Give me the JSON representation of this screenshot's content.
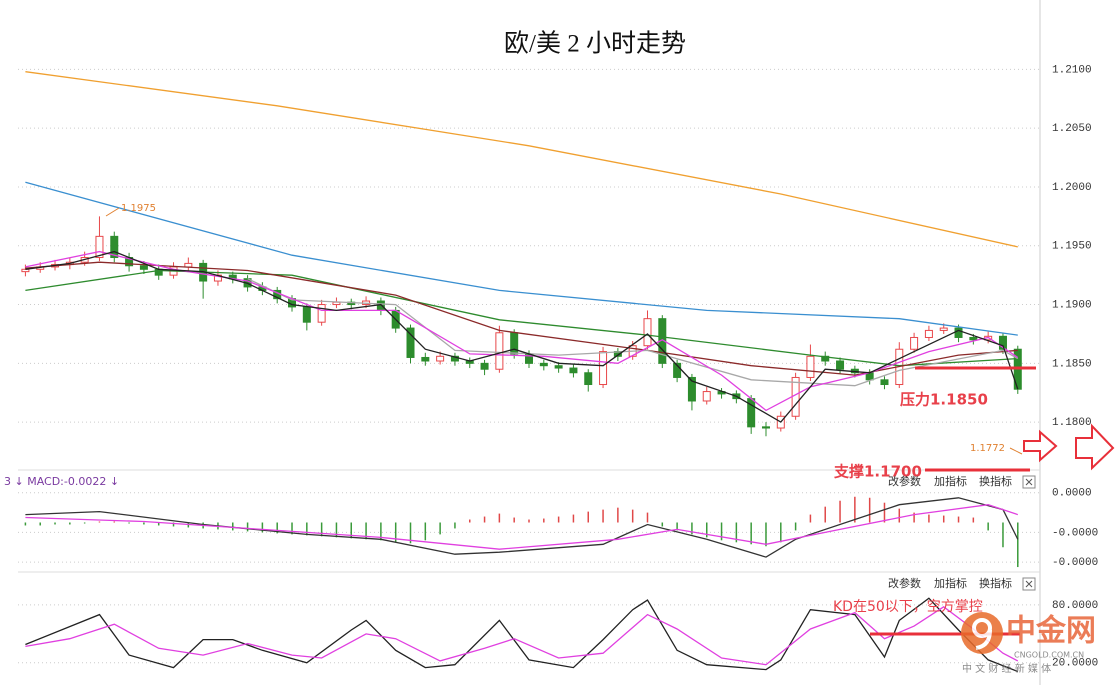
{
  "chart_data": [
    {
      "type": "candlestick",
      "title": "欧/美 2 小时走势",
      "up_color": "#e8474a",
      "down_color": "#2d8c2d",
      "xlim": [
        -0.5,
        68.5
      ],
      "ylim": [
        1.1761,
        1.2142
      ],
      "grid": true,
      "yticks": [
        {
          "value": 1.21,
          "label": "1.2100"
        },
        {
          "value": 1.205,
          "label": "1.2050"
        },
        {
          "value": 1.2,
          "label": "1.2000"
        },
        {
          "value": 1.195,
          "label": "1.1950"
        },
        {
          "value": 1.19,
          "label": "1.1900"
        },
        {
          "value": 1.185,
          "label": "1.1850"
        },
        {
          "value": 1.18,
          "label": "1.1800"
        }
      ],
      "annotations": [
        "1.1975",
        "1.1772",
        "压力1.1850",
        "支撑1.1700"
      ],
      "ohlc": [
        [
          1.1928,
          1.1934,
          1.1924,
          1.193
        ],
        [
          1.193,
          1.1936,
          1.1927,
          1.1932
        ],
        [
          1.1932,
          1.1938,
          1.1929,
          1.1934
        ],
        [
          1.1934,
          1.194,
          1.193,
          1.1936
        ],
        [
          1.1936,
          1.1945,
          1.1933,
          1.194
        ],
        [
          1.194,
          1.1975,
          1.1937,
          1.1958
        ],
        [
          1.1958,
          1.1962,
          1.1936,
          1.194
        ],
        [
          1.194,
          1.1944,
          1.1928,
          1.1933
        ],
        [
          1.1933,
          1.1937,
          1.1926,
          1.193
        ],
        [
          1.193,
          1.1934,
          1.1921,
          1.1925
        ],
        [
          1.1925,
          1.1936,
          1.1922,
          1.1932
        ],
        [
          1.1932,
          1.194,
          1.1929,
          1.1935
        ],
        [
          1.1935,
          1.1938,
          1.1905,
          1.192
        ],
        [
          1.192,
          1.1929,
          1.1916,
          1.1925
        ],
        [
          1.1925,
          1.1928,
          1.1918,
          1.1922
        ],
        [
          1.1922,
          1.1925,
          1.1911,
          1.1915
        ],
        [
          1.1915,
          1.1919,
          1.1908,
          1.1912
        ],
        [
          1.1912,
          1.1915,
          1.1901,
          1.1905
        ],
        [
          1.1905,
          1.1908,
          1.1894,
          1.1898
        ],
        [
          1.1898,
          1.1901,
          1.1878,
          1.1885
        ],
        [
          1.1885,
          1.1904,
          1.1882,
          1.19
        ],
        [
          1.19,
          1.1906,
          1.1897,
          1.1902
        ],
        [
          1.1902,
          1.1905,
          1.1896,
          1.19
        ],
        [
          1.19,
          1.1907,
          1.1897,
          1.1903
        ],
        [
          1.1903,
          1.1906,
          1.1891,
          1.1895
        ],
        [
          1.1895,
          1.1898,
          1.1876,
          1.188
        ],
        [
          1.188,
          1.1883,
          1.185,
          1.1855
        ],
        [
          1.1855,
          1.1859,
          1.1848,
          1.1852
        ],
        [
          1.1852,
          1.186,
          1.1849,
          1.1856
        ],
        [
          1.1856,
          1.1859,
          1.1848,
          1.1852
        ],
        [
          1.1852,
          1.1855,
          1.1846,
          1.185
        ],
        [
          1.185,
          1.1853,
          1.184,
          1.1845
        ],
        [
          1.1845,
          1.1882,
          1.1842,
          1.1876
        ],
        [
          1.1876,
          1.1879,
          1.1854,
          1.1858
        ],
        [
          1.1858,
          1.1861,
          1.1846,
          1.185
        ],
        [
          1.185,
          1.1853,
          1.1844,
          1.1848
        ],
        [
          1.1848,
          1.1851,
          1.1842,
          1.1846
        ],
        [
          1.1846,
          1.1849,
          1.1838,
          1.1842
        ],
        [
          1.1842,
          1.1845,
          1.1826,
          1.1832
        ],
        [
          1.1832,
          1.1864,
          1.1829,
          1.186
        ],
        [
          1.186,
          1.1863,
          1.1852,
          1.1856
        ],
        [
          1.1856,
          1.1869,
          1.1853,
          1.1865
        ],
        [
          1.1865,
          1.1895,
          1.1862,
          1.1888
        ],
        [
          1.1888,
          1.1891,
          1.1846,
          1.185
        ],
        [
          1.185,
          1.1853,
          1.1834,
          1.1838
        ],
        [
          1.1838,
          1.1841,
          1.181,
          1.1818
        ],
        [
          1.1818,
          1.183,
          1.1815,
          1.1826
        ],
        [
          1.1826,
          1.1829,
          1.182,
          1.1824
        ],
        [
          1.1824,
          1.1827,
          1.1816,
          1.182
        ],
        [
          1.182,
          1.1823,
          1.179,
          1.1796
        ],
        [
          1.1796,
          1.18,
          1.1788,
          1.1795
        ],
        [
          1.1795,
          1.1809,
          1.1792,
          1.1805
        ],
        [
          1.1805,
          1.1842,
          1.1802,
          1.1838
        ],
        [
          1.1838,
          1.1866,
          1.1835,
          1.1856
        ],
        [
          1.1856,
          1.186,
          1.1848,
          1.1852
        ],
        [
          1.1852,
          1.1855,
          1.1841,
          1.1845
        ],
        [
          1.1845,
          1.1848,
          1.1838,
          1.1842
        ],
        [
          1.1842,
          1.1845,
          1.1832,
          1.1836
        ],
        [
          1.1836,
          1.1839,
          1.1828,
          1.1832
        ],
        [
          1.1832,
          1.1868,
          1.1829,
          1.1862
        ],
        [
          1.1862,
          1.1876,
          1.1859,
          1.1872
        ],
        [
          1.1872,
          1.1882,
          1.1869,
          1.1878
        ],
        [
          1.1878,
          1.1884,
          1.1875,
          1.188
        ],
        [
          1.188,
          1.1883,
          1.1868,
          1.1872
        ],
        [
          1.1872,
          1.1875,
          1.1866,
          1.187
        ],
        [
          1.187,
          1.1877,
          1.1867,
          1.1873
        ],
        [
          1.1873,
          1.1876,
          1.1858,
          1.1862
        ],
        [
          1.1862,
          1.1865,
          1.1824,
          1.1828
        ]
      ],
      "series": [
        {
          "color": "#f0a030",
          "x": [
            0,
            17,
            34,
            51,
            67
          ],
          "values": [
            1.2098,
            1.2069,
            1.2035,
            1.1994,
            1.1949
          ]
        },
        {
          "color": "#3a8fd0",
          "x": [
            0,
            18,
            32,
            46,
            59,
            67
          ],
          "values": [
            1.2004,
            1.1942,
            1.1912,
            1.1895,
            1.1888,
            1.1874
          ]
        },
        {
          "color": "#2e8b2e",
          "x": [
            0,
            9,
            18,
            32,
            42,
            53,
            59,
            67
          ],
          "values": [
            1.1912,
            1.1929,
            1.1925,
            1.1887,
            1.1874,
            1.1857,
            1.1848,
            1.1854
          ]
        },
        {
          "color": "#8b2a2a",
          "x": [
            0,
            5,
            15,
            25,
            32,
            42,
            49,
            56,
            63,
            67
          ],
          "values": [
            1.1931,
            1.1936,
            1.1929,
            1.1908,
            1.1878,
            1.1861,
            1.1848,
            1.184,
            1.1857,
            1.1861
          ]
        },
        {
          "color": "#a8a8a8",
          "x": [
            15,
            18,
            25,
            29,
            36,
            42,
            49,
            56,
            59,
            66,
            67
          ],
          "values": [
            1.1922,
            1.1904,
            1.19,
            1.1861,
            1.1857,
            1.1861,
            1.1836,
            1.1831,
            1.1844,
            1.1861,
            1.1854
          ]
        },
        {
          "color": "#e040e0",
          "x": [
            0,
            5,
            10,
            15,
            20,
            25,
            30,
            35,
            40,
            43,
            47,
            50,
            53,
            57,
            61,
            65,
            67
          ],
          "values": [
            1.1932,
            1.1945,
            1.193,
            1.192,
            1.1895,
            1.1895,
            1.1858,
            1.1856,
            1.185,
            1.187,
            1.184,
            1.181,
            1.183,
            1.1842,
            1.186,
            1.1872,
            1.1855
          ]
        },
        {
          "color": "#222222",
          "x": [
            0,
            3,
            6,
            9,
            12,
            15,
            18,
            21,
            24,
            27,
            30,
            33,
            36,
            39,
            42,
            45,
            48,
            51,
            54,
            57,
            60,
            63,
            66,
            67
          ],
          "values": [
            1.193,
            1.1935,
            1.1945,
            1.193,
            1.1928,
            1.1918,
            1.19,
            1.1895,
            1.19,
            1.1862,
            1.1852,
            1.1862,
            1.185,
            1.1848,
            1.1875,
            1.1835,
            1.1822,
            1.18,
            1.1845,
            1.1842,
            1.186,
            1.1878,
            1.1865,
            1.1828
          ]
        }
      ]
    },
    {
      "type": "macd",
      "header": "3 ↓ MACD:-0.0022 ↓",
      "buttons": [
        "改参数",
        "加指标",
        "换指标"
      ],
      "xlim": [
        -0.5,
        68.5
      ],
      "ylim": [
        -5e-05,
        5e-05
      ],
      "grid": true,
      "yticks": [
        {
          "value": 3e-05,
          "label": "0.0000"
        },
        {
          "value": -1e-05,
          "label": "-0.0000"
        },
        {
          "value": -4e-05,
          "label": "-0.0000"
        }
      ],
      "bars": {
        "up_color": "#e04848",
        "down_color": "#3a9a3a",
        "values": [
          -3e-06,
          -3e-06,
          -2e-06,
          -2e-06,
          -1e-06,
          1e-06,
          1e-06,
          -1e-06,
          -2e-06,
          -3e-06,
          -4e-06,
          -5e-06,
          -6e-06,
          -7e-06,
          -8e-06,
          -9e-06,
          -1e-05,
          -1.1e-05,
          -1.2e-05,
          -1.3e-05,
          -1.4e-05,
          -1.5e-05,
          -1.6e-05,
          -1.7e-05,
          -1.8e-05,
          -2e-05,
          -2.1e-05,
          -1.8e-05,
          -1.2e-05,
          -6e-06,
          3e-06,
          6e-06,
          9e-06,
          5e-06,
          3e-06,
          4e-06,
          6e-06,
          8e-06,
          1.1e-05,
          1.3e-05,
          1.5e-05,
          1.3e-05,
          1e-05,
          -4e-06,
          -8e-06,
          -1.2e-05,
          -1.5e-05,
          -1.8e-05,
          -2e-05,
          -2.2e-05,
          -2.4e-05,
          -2e-05,
          -8e-06,
          8e-06,
          1.6e-05,
          2.2e-05,
          2.6e-05,
          2.5e-05,
          2e-05,
          1.4e-05,
          1e-05,
          8e-06,
          7e-06,
          6e-06,
          5e-06,
          -8e-06,
          -2.5e-05,
          -4.5e-05
        ]
      },
      "series": [
        {
          "color": "#333333",
          "x": [
            0,
            5,
            12,
            19,
            24,
            29,
            32,
            39,
            42,
            46,
            50,
            52,
            56,
            59,
            63,
            66,
            67
          ],
          "values": [
            8e-06,
            1.1e-05,
            -2e-06,
            -1.2e-05,
            -1.7e-05,
            -3.2e-05,
            -3e-05,
            -2.2e-05,
            -2e-06,
            -1.7e-05,
            -3.5e-05,
            -1.7e-05,
            3e-06,
            1.8e-05,
            2.5e-05,
            1.3e-05,
            -1.7e-05
          ]
        },
        {
          "color": "#e040e0",
          "x": [
            0,
            8,
            16,
            24,
            32,
            40,
            44,
            50,
            55,
            60,
            65,
            67
          ],
          "values": [
            5e-06,
            1e-06,
            -7e-06,
            -1.5e-05,
            -2.7e-05,
            -1.7e-05,
            -7e-06,
            -2.2e-05,
            -7e-06,
            8e-06,
            1.8e-05,
            8e-06
          ]
        }
      ]
    },
    {
      "type": "kd",
      "buttons": [
        "改参数",
        "加指标",
        "换指标"
      ],
      "annotation": "KD在50以下，空方掌控",
      "xlim": [
        -0.5,
        68.5
      ],
      "ylim": [
        -3,
        111
      ],
      "grid": true,
      "yticks": [
        {
          "value": 80,
          "label": "80.0000"
        },
        {
          "value": 20,
          "label": "20.0000"
        }
      ],
      "series": [
        {
          "color": "#222222",
          "x": [
            0,
            5,
            7,
            10,
            12,
            14,
            16,
            19,
            22,
            23,
            25,
            27,
            29,
            32,
            34,
            37,
            39,
            41,
            42,
            44,
            46,
            50,
            51,
            53,
            56,
            58,
            59,
            61,
            63,
            65,
            67
          ],
          "values": [
            39,
            70,
            28,
            15,
            44,
            44,
            33,
            20,
            54,
            64,
            33,
            15,
            18,
            64,
            23,
            15,
            44,
            75,
            85,
            33,
            18,
            13,
            23,
            75,
            70,
            26,
            64,
            87,
            54,
            23,
            11
          ]
        },
        {
          "color": "#e040e0",
          "x": [
            0,
            3,
            6,
            9,
            12,
            15,
            18,
            20,
            23,
            25,
            28,
            31,
            33,
            36,
            39,
            42,
            44,
            47,
            50,
            53,
            56,
            58,
            60,
            62,
            64,
            66,
            67
          ],
          "values": [
            37,
            45,
            60,
            35,
            28,
            40,
            28,
            25,
            50,
            45,
            22,
            35,
            45,
            25,
            30,
            70,
            55,
            25,
            18,
            55,
            72,
            45,
            58,
            78,
            55,
            30,
            22
          ]
        }
      ]
    }
  ],
  "watermark": {
    "name": "中金网",
    "site": "CNGOLD.COM.CN",
    "tagline": "中 文 财 经 新 媒 体"
  }
}
